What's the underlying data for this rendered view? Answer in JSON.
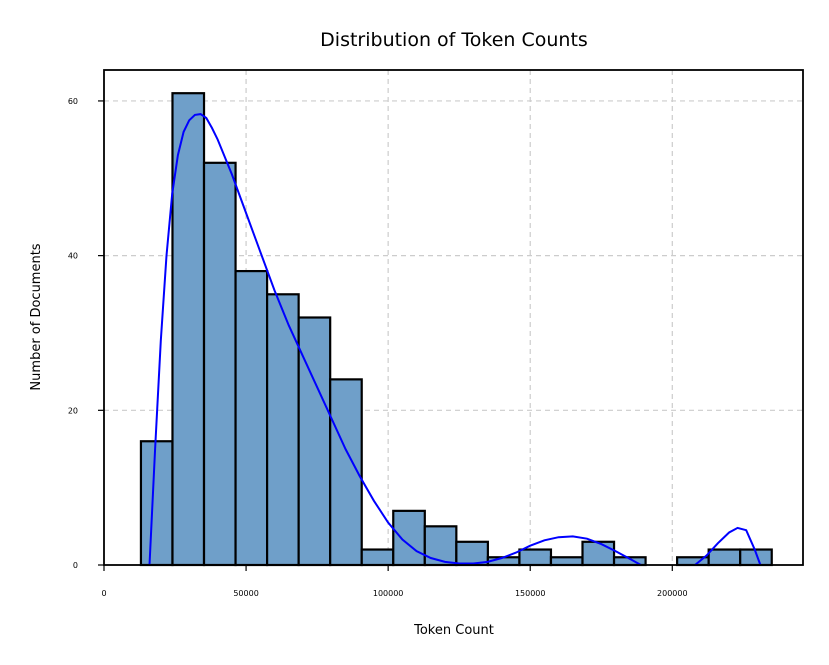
{
  "chart_data": {
    "type": "bar",
    "subtype": "histogram_with_kde",
    "title": "Distribution of Token Counts",
    "xlabel": "Token Count",
    "ylabel": "Number of Documents",
    "xlim": [
      0,
      246000
    ],
    "ylim": [
      0,
      64
    ],
    "x_ticks": [
      0,
      50000,
      100000,
      150000,
      200000
    ],
    "y_ticks": [
      0,
      20,
      40,
      60
    ],
    "grid": true,
    "bin_start": 13000,
    "bin_width": 11100,
    "counts": [
      16,
      61,
      52,
      38,
      35,
      32,
      24,
      2,
      7,
      5,
      3,
      1,
      2,
      1,
      3,
      1,
      0,
      1,
      2,
      2
    ],
    "kde": {
      "x": [
        16000,
        18000,
        20000,
        22000,
        24000,
        26000,
        28000,
        30000,
        32000,
        34000,
        36000,
        38000,
        40000,
        45000,
        50000,
        55000,
        60000,
        65000,
        70000,
        75000,
        80000,
        85000,
        90000,
        95000,
        100000,
        105000,
        110000,
        115000,
        120000,
        125000,
        130000,
        135000,
        140000,
        145000,
        150000,
        155000,
        160000,
        165000,
        170000,
        175000,
        180000,
        185000,
        189000,
        208000,
        212000,
        216000,
        220000,
        223000,
        226000,
        229000,
        231000
      ],
      "y": [
        0,
        15,
        29,
        40,
        48,
        53,
        56,
        57.5,
        58.2,
        58.3,
        57.8,
        56.5,
        55,
        50.5,
        45.5,
        40.5,
        35.5,
        31,
        27,
        23,
        19,
        15,
        11.5,
        8.3,
        5.5,
        3.3,
        1.8,
        0.9,
        0.4,
        0.2,
        0.2,
        0.4,
        0.9,
        1.6,
        2.5,
        3.2,
        3.6,
        3.7,
        3.4,
        2.7,
        1.8,
        0.8,
        0,
        0,
        1.2,
        2.8,
        4.2,
        4.8,
        4.5,
        2,
        0
      ],
      "color": "#0000ff"
    },
    "bar_color": "#6f9fc9"
  }
}
